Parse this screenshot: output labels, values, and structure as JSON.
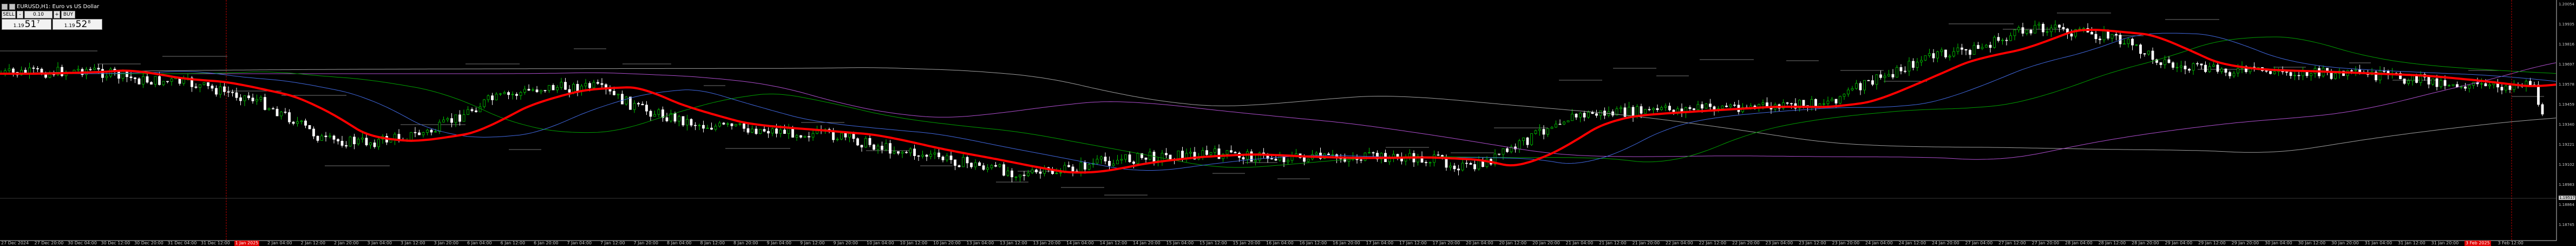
{
  "window": {
    "symbol_title": "EURUSD,H1:  Euro vs US Dollar"
  },
  "trade_panel": {
    "sell_label": "SELL",
    "buy_label": "BUY",
    "lot_value": "0.10",
    "minus_label": "-",
    "plus_label": "+",
    "bid": {
      "prefix": "1.19",
      "big": "51",
      "sup": "7"
    },
    "ask": {
      "prefix": "1.19",
      "big": "52",
      "sup": "8"
    }
  },
  "price_axis": {
    "labels": [
      "1.20054",
      "1.19935",
      "1.19816",
      "1.19697",
      "1.19578",
      "1.19459",
      "1.19340",
      "1.19221",
      "1.19102",
      "1.18983",
      "1.18864",
      "1.18745"
    ],
    "current_price": "1.19517"
  },
  "time_axis": {
    "labels": [
      "27 Dec 2024",
      "27 Dec 20:00",
      "30 Dec 04:00",
      "30 Dec 12:00",
      "30 Dec 20:00",
      "31 Dec 04:00",
      "31 Dec 12:00",
      "1 Jan 2025",
      "2 Jan 04:00",
      "2 Jan 12:00",
      "2 Jan 20:00",
      "3 Jan 04:00",
      "3 Jan 12:00",
      "3 Jan 20:00",
      "6 Jan 04:00",
      "6 Jan 12:00",
      "6 Jan 20:00",
      "7 Jan 04:00",
      "7 Jan 12:00",
      "7 Jan 20:00",
      "8 Jan 04:00",
      "8 Jan 12:00",
      "8 Jan 20:00",
      "9 Jan 04:00",
      "9 Jan 12:00",
      "9 Jan 20:00",
      "10 Jan 04:00",
      "10 Jan 12:00",
      "10 Jan 20:00",
      "13 Jan 04:00",
      "13 Jan 12:00",
      "13 Jan 20:00",
      "14 Jan 04:00",
      "14 Jan 12:00",
      "14 Jan 20:00",
      "15 Jan 04:00",
      "15 Jan 12:00",
      "15 Jan 20:00",
      "16 Jan 04:00",
      "16 Jan 12:00",
      "16 Jan 20:00",
      "17 Jan 04:00",
      "17 Jan 12:00",
      "17 Jan 20:00",
      "20 Jan 04:00",
      "20 Jan 12:00",
      "20 Jan 20:00",
      "21 Jan 04:00",
      "21 Jan 12:00",
      "21 Jan 20:00",
      "22 Jan 04:00",
      "22 Jan 12:00",
      "22 Jan 20:00",
      "23 Jan 04:00",
      "23 Jan 12:00",
      "23 Jan 20:00",
      "24 Jan 04:00",
      "24 Jan 12:00",
      "24 Jan 20:00",
      "27 Jan 04:00",
      "27 Jan 12:00",
      "27 Jan 20:00",
      "28 Jan 04:00",
      "28 Jan 12:00",
      "28 Jan 20:00",
      "29 Jan 04:00",
      "29 Jan 12:00",
      "29 Jan 20:00",
      "30 Jan 04:00",
      "30 Jan 12:00",
      "30 Jan 20:00",
      "31 Jan 04:00",
      "31 Jan 12:00",
      "31 Jan 20:00",
      "3 Feb 2025",
      "3 Feb 12:00"
    ],
    "highlighted": [
      "1 Jan 2025",
      "3 Feb 2025"
    ]
  },
  "colors": {
    "background": "#000000",
    "bull_candle": "#00c800",
    "bear_candle": "#ffffff",
    "ma_fast": "#ff0000",
    "ma_2": "#4169e1",
    "ma_3": "#00a000",
    "ma_4": "#b04fd0",
    "ma_5": "#a0a0a0",
    "separator": "#c00000"
  }
}
